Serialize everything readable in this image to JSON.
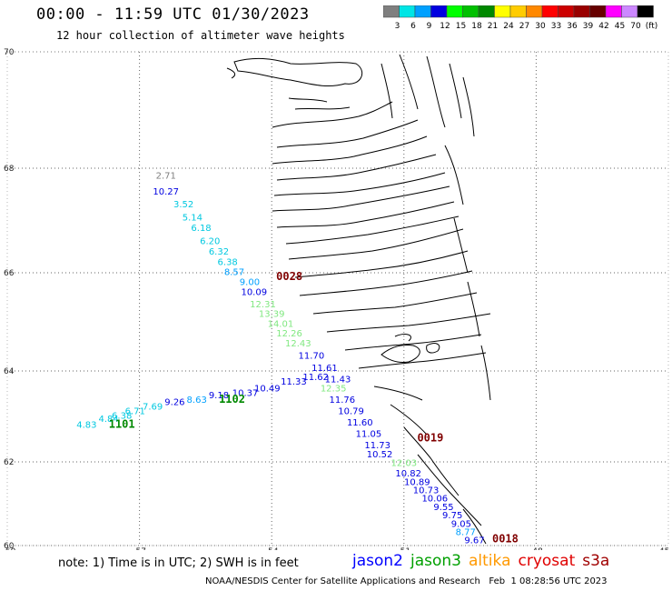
{
  "title": "00:00 - 11:59 UTC 01/30/2023",
  "subtitle": "12 hour collection of altimeter wave heights",
  "colorbar": {
    "colors": [
      "#7f7f7f",
      "#00e5e5",
      "#00a0ff",
      "#0000e0",
      "#00ff00",
      "#00c000",
      "#008800",
      "#ffff00",
      "#ffcc00",
      "#ff8800",
      "#ff0000",
      "#cc0000",
      "#990000",
      "#660000",
      "#ff00ff",
      "#cc88ff",
      "#000000"
    ],
    "labels": [
      "3",
      "6",
      "9",
      "12",
      "15",
      "18",
      "21",
      "24",
      "27",
      "30",
      "33",
      "36",
      "39",
      "42",
      "45",
      "70",
      "(ft)"
    ]
  },
  "axes": {
    "lat_labels": [
      "70",
      "68",
      "66",
      "64",
      "62",
      "60"
    ],
    "lon_labels": [
      "-60",
      "-57",
      "-54",
      "-51",
      "-48",
      "-45"
    ]
  },
  "observations": [
    {
      "v": "2.71",
      "lon": -56.4,
      "lat": 67.8,
      "c": "#7f7f7f"
    },
    {
      "v": "10.27",
      "lon": -56.4,
      "lat": 67.5,
      "c": "#0000e0"
    },
    {
      "v": "3.52",
      "lon": -56.0,
      "lat": 67.25,
      "c": "#00c8e0"
    },
    {
      "v": "5.14",
      "lon": -55.8,
      "lat": 67.0,
      "c": "#00c8e0"
    },
    {
      "v": "6.18",
      "lon": -55.6,
      "lat": 66.8,
      "c": "#00c8e0"
    },
    {
      "v": "6.20",
      "lon": -55.4,
      "lat": 66.55,
      "c": "#00c8e0"
    },
    {
      "v": "6.32",
      "lon": -55.2,
      "lat": 66.35,
      "c": "#00c8e0"
    },
    {
      "v": "6.38",
      "lon": -55.0,
      "lat": 66.15,
      "c": "#00c8e0"
    },
    {
      "v": "8.57",
      "lon": -54.85,
      "lat": 65.95,
      "c": "#00a0ff"
    },
    {
      "v": "9.00",
      "lon": -54.5,
      "lat": 65.75,
      "c": "#00a0ff"
    },
    {
      "v": "10.09",
      "lon": -54.4,
      "lat": 65.55,
      "c": "#0000e0"
    },
    {
      "v": "12.31",
      "lon": -54.2,
      "lat": 65.3,
      "c": "#80e880"
    },
    {
      "v": "13.39",
      "lon": -54.0,
      "lat": 65.1,
      "c": "#80e880"
    },
    {
      "v": "14.01",
      "lon": -53.8,
      "lat": 64.9,
      "c": "#80e880"
    },
    {
      "v": "12.26",
      "lon": -53.6,
      "lat": 64.7,
      "c": "#80e880"
    },
    {
      "v": "12.43",
      "lon": -53.4,
      "lat": 64.5,
      "c": "#80e880"
    },
    {
      "v": "11.70",
      "lon": -53.1,
      "lat": 64.25,
      "c": "#0000e0"
    },
    {
      "v": "11.61",
      "lon": -52.8,
      "lat": 64.0,
      "c": "#0000e0"
    },
    {
      "v": "11.43",
      "lon": -52.5,
      "lat": 63.75,
      "c": "#0000e0"
    },
    {
      "v": "12.35",
      "lon": -52.6,
      "lat": 63.55,
      "c": "#80e880"
    },
    {
      "v": "11.76",
      "lon": -52.4,
      "lat": 63.3,
      "c": "#0000e0"
    },
    {
      "v": "10.79",
      "lon": -52.2,
      "lat": 63.05,
      "c": "#0000e0"
    },
    {
      "v": "11.60",
      "lon": -52.0,
      "lat": 62.8,
      "c": "#0000e0"
    },
    {
      "v": "11.05",
      "lon": -51.8,
      "lat": 62.55,
      "c": "#0000e0"
    },
    {
      "v": "11.73",
      "lon": -51.6,
      "lat": 62.3,
      "c": "#0000e0"
    },
    {
      "v": "10.52",
      "lon": -51.55,
      "lat": 62.1,
      "c": "#0000e0"
    },
    {
      "v": "12.03",
      "lon": -51.0,
      "lat": 61.9,
      "c": "#80e880"
    },
    {
      "v": "10.82",
      "lon": -50.9,
      "lat": 61.65,
      "c": "#0000e0"
    },
    {
      "v": "10.89",
      "lon": -50.7,
      "lat": 61.45,
      "c": "#0000e0"
    },
    {
      "v": "10.73",
      "lon": -50.5,
      "lat": 61.25,
      "c": "#0000e0"
    },
    {
      "v": "10.06",
      "lon": -50.3,
      "lat": 61.05,
      "c": "#0000e0"
    },
    {
      "v": "9.55",
      "lon": -50.1,
      "lat": 60.85,
      "c": "#0000e0"
    },
    {
      "v": "9.75",
      "lon": -49.9,
      "lat": 60.65,
      "c": "#0000e0"
    },
    {
      "v": "9.05",
      "lon": -49.7,
      "lat": 60.45,
      "c": "#0000e0"
    },
    {
      "v": "8.77",
      "lon": -49.6,
      "lat": 60.25,
      "c": "#00a0ff"
    },
    {
      "v": "9.67",
      "lon": -49.4,
      "lat": 60.05,
      "c": "#0000e0"
    },
    {
      "v": "11.62",
      "lon": -53.0,
      "lat": 63.8,
      "c": "#0000e0"
    },
    {
      "v": "11.33",
      "lon": -53.5,
      "lat": 63.7,
      "c": "#0000e0"
    },
    {
      "v": "10.49",
      "lon": -54.1,
      "lat": 63.55,
      "c": "#0000e0"
    },
    {
      "v": "10.37",
      "lon": -54.6,
      "lat": 63.45,
      "c": "#0000e0"
    },
    {
      "v": "9.18",
      "lon": -55.2,
      "lat": 63.4,
      "c": "#0000e0"
    },
    {
      "v": "8.63",
      "lon": -55.7,
      "lat": 63.3,
      "c": "#00a0ff"
    },
    {
      "v": "9.26",
      "lon": -56.2,
      "lat": 63.25,
      "c": "#0000e0"
    },
    {
      "v": "7.69",
      "lon": -56.7,
      "lat": 63.15,
      "c": "#00c8e0"
    },
    {
      "v": "6.71",
      "lon": -57.1,
      "lat": 63.05,
      "c": "#00c8e0"
    },
    {
      "v": "6.38",
      "lon": -57.4,
      "lat": 62.95,
      "c": "#00c8e0"
    },
    {
      "v": "4.84",
      "lon": -57.7,
      "lat": 62.88,
      "c": "#00c8e0"
    },
    {
      "v": "4.83",
      "lon": -58.2,
      "lat": 62.75,
      "c": "#00c8e0"
    }
  ],
  "passes": [
    {
      "label": "0028",
      "lon": -53.6,
      "lat": 65.85,
      "c": "#800000"
    },
    {
      "label": "1102",
      "lon": -54.9,
      "lat": 63.3,
      "c": "#008800"
    },
    {
      "label": "1101",
      "lon": -57.4,
      "lat": 62.75,
      "c": "#008800"
    },
    {
      "label": "0019",
      "lon": -50.4,
      "lat": 62.45,
      "c": "#800000"
    },
    {
      "label": "0018",
      "lon": -48.7,
      "lat": 60.08,
      "c": "#800000"
    }
  ],
  "note": "note: 1) Time is in UTC; 2) SWH is in feet",
  "legend": [
    {
      "name": "jason2",
      "color": "#0000ff"
    },
    {
      "name": "jason3",
      "color": "#00a000"
    },
    {
      "name": "altika",
      "color": "#ff9900"
    },
    {
      "name": "cryosat",
      "color": "#e00000"
    },
    {
      "name": "s3a",
      "color": "#a00000"
    }
  ],
  "footer": "NOAA/NESDIS Center for Satellite Applications and Research   Feb  1 08:28:56 UTC 2023"
}
